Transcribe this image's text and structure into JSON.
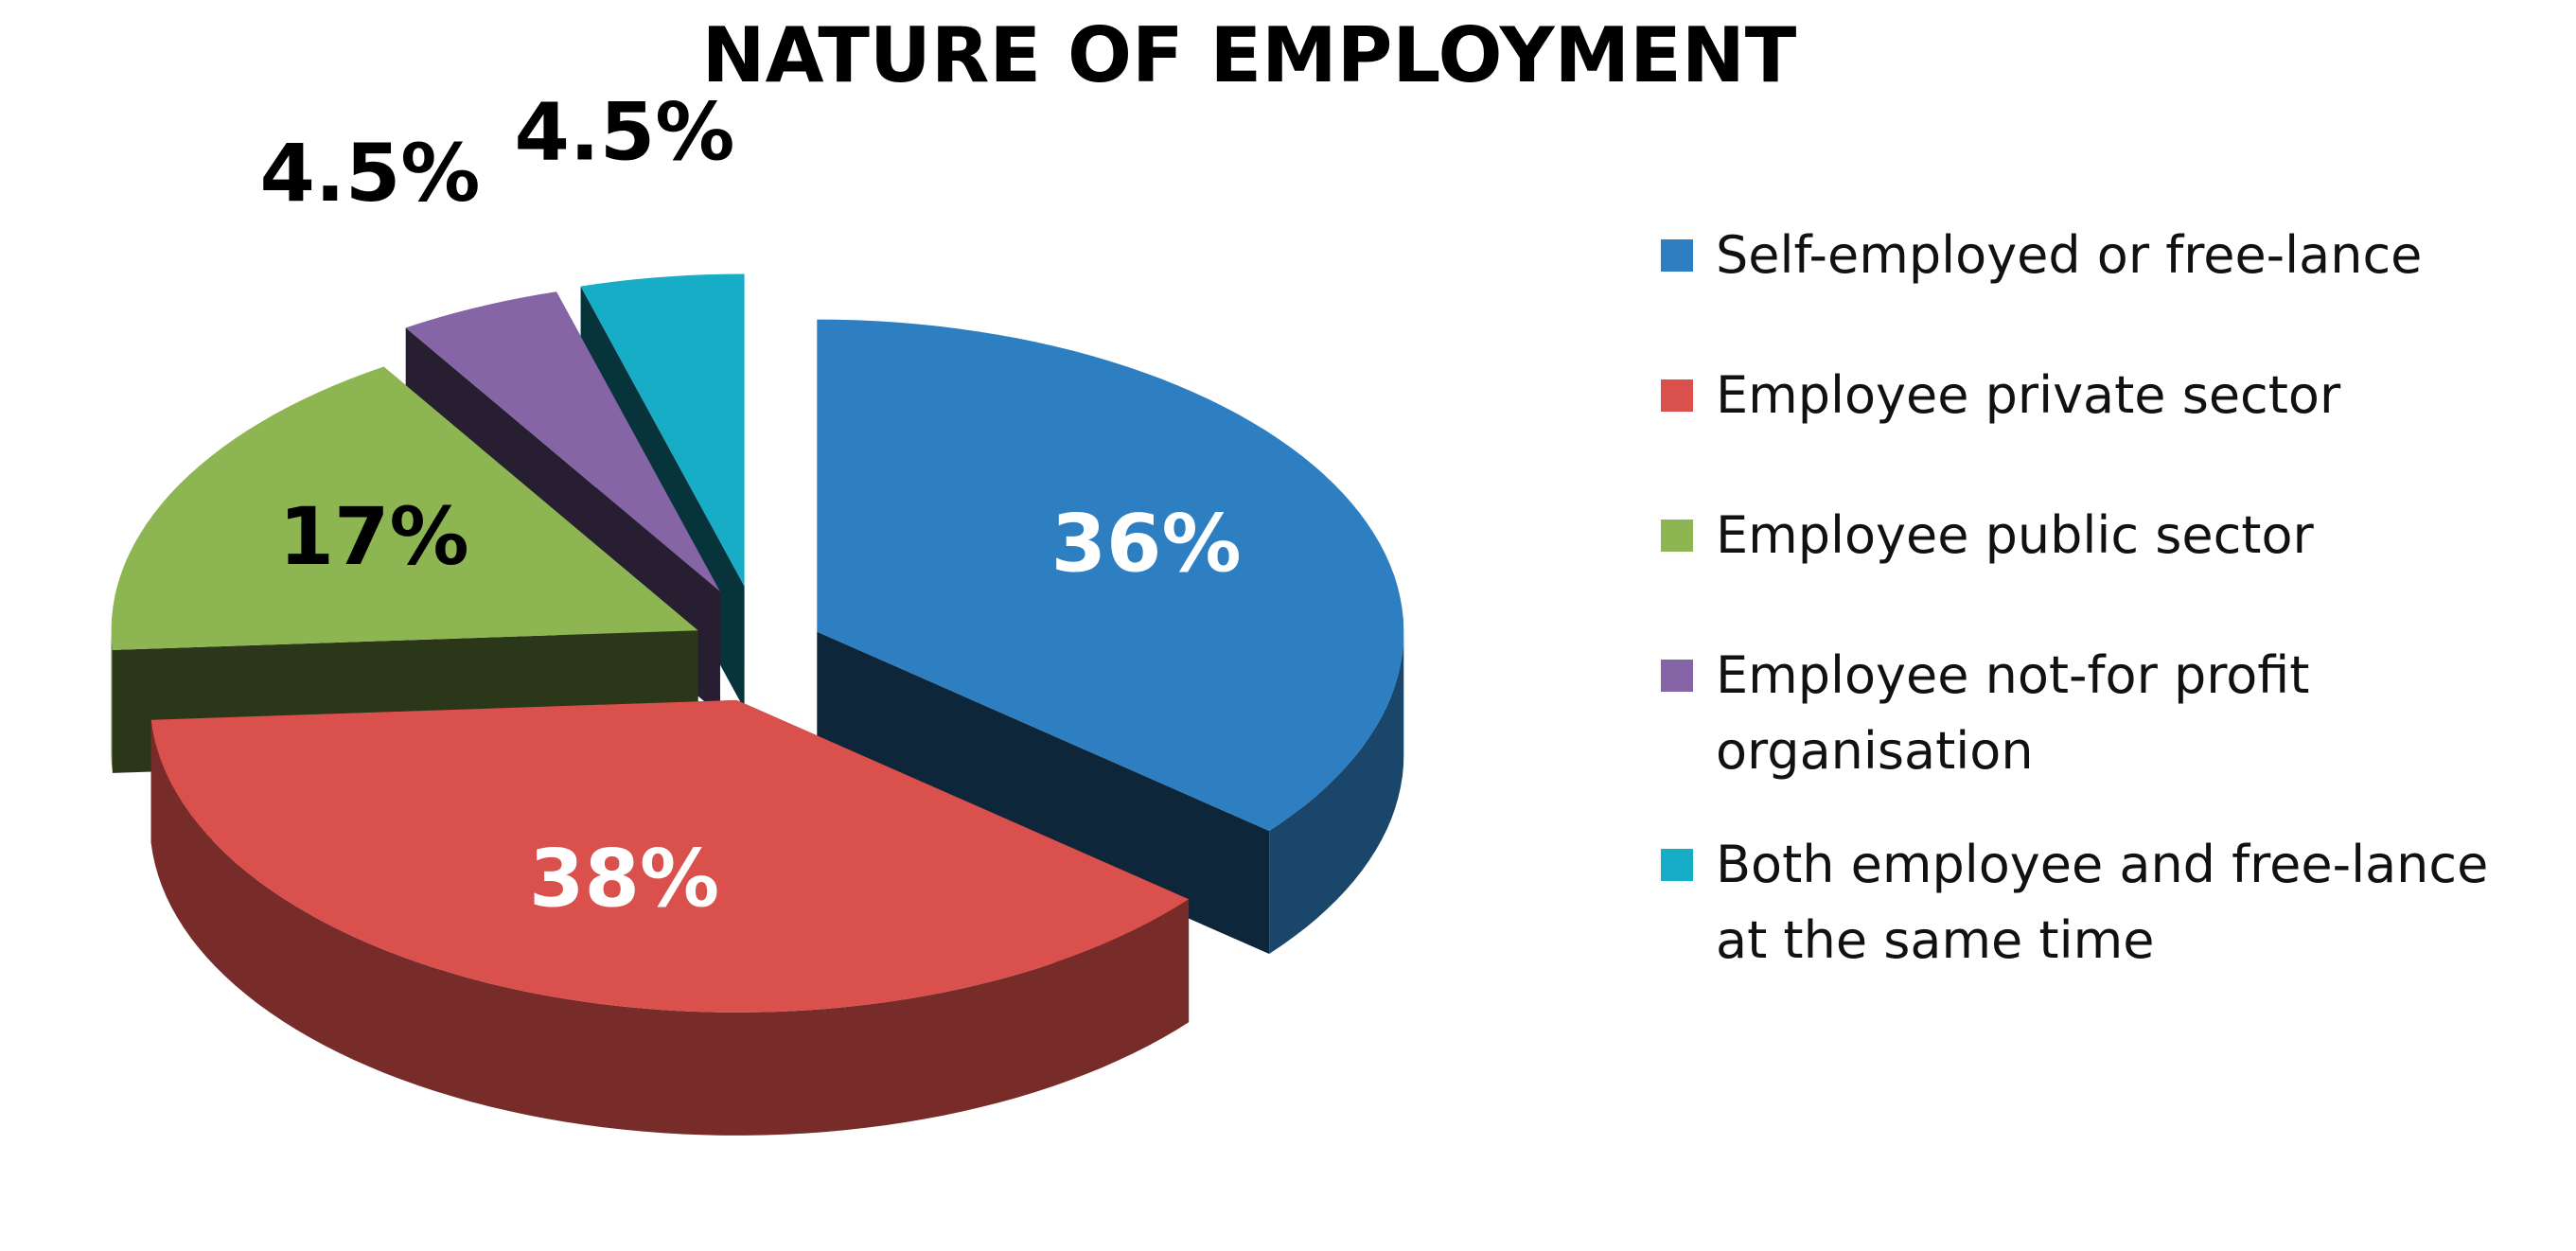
{
  "chart_data": {
    "type": "pie",
    "title": "NATURE OF EMPLOYMENT",
    "categories": [
      "Self-employed or free-lance",
      "Employee private sector",
      "Employee public sector",
      "Employee not-for profit organisation",
      "Both employee and free-lance at the same time"
    ],
    "values": [
      36,
      38,
      17,
      4.5,
      4.5
    ],
    "value_labels": [
      "36%",
      "38%",
      "17%",
      "4.5%",
      "4.5%"
    ],
    "colors": [
      "#2e7fc1",
      "#d9504d",
      "#8db653",
      "#8565a6",
      "#18adc6"
    ],
    "legend": "right"
  }
}
